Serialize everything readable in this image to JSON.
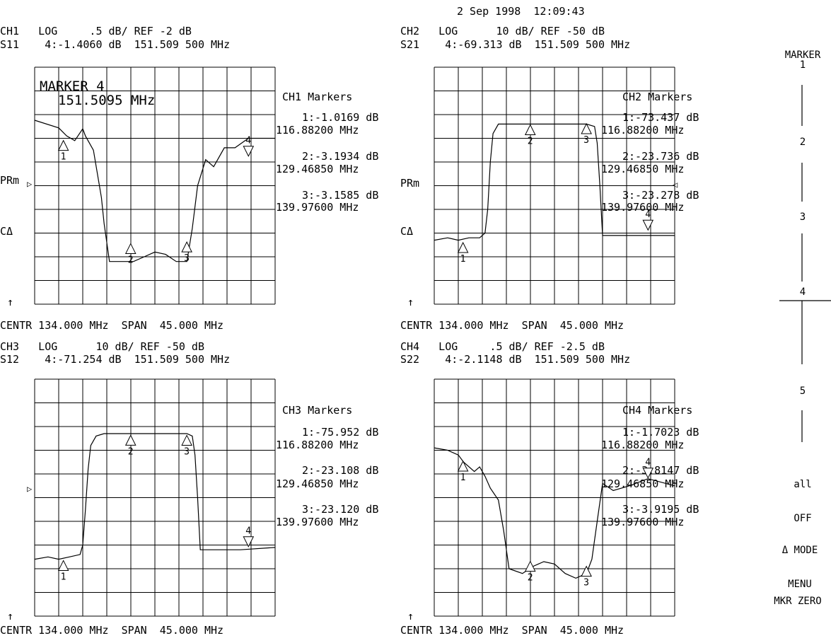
{
  "timestamp": "2 Sep 1998  12:09:43",
  "softkeys": {
    "marker_title": "MARKER",
    "k1": "1",
    "k2": "2",
    "k3": "3",
    "k4": "4",
    "k5": "5",
    "all": "all",
    "off": "OFF",
    "mode1": "Δ MODE",
    "mode2": "MENU",
    "zero": "MKR ZERO"
  },
  "channels": [
    {
      "hdr1": "CH1   LOG     .5 dB/ REF -2 dB",
      "hdr2": "S11    4:-1.4060 dB  151.509 500 MHz",
      "footer": "CENTR 134.000 MHz  SPAN  45.000 MHz",
      "box_title": "CH1 Markers",
      "m1a": "1:-1.0169 dB",
      "m1b": "116.88200 MHz",
      "m2a": "2:-3.1934 dB",
      "m2b": "129.46850 MHz",
      "m3a": "3:-3.1585 dB",
      "m3b": "139.97600 MHz",
      "prm": "PRm",
      "cdelta": "CΔ",
      "arrow": "↑",
      "marker_box_title": "MARKER 4",
      "marker_box_value": "151.5095 MHz",
      "ref_arrow": "▷"
    },
    {
      "hdr1": "CH2   LOG      10 dB/ REF -50 dB",
      "hdr2": "S21    4:-69.313 dB  151.509 500 MHz",
      "footer": "CENTR 134.000 MHz  SPAN  45.000 MHz",
      "box_title": "CH2 Markers",
      "m1a": "1:-73.437 dB",
      "m1b": "116.88200 MHz",
      "m2a": "2:-23.736 dB",
      "m2b": "129.46850 MHz",
      "m3a": "3:-23.278 dB",
      "m3b": "139.97600 MHz",
      "prm": "PRm",
      "cdelta": "CΔ",
      "arrow": "↑",
      "ref_arrow": "◁"
    },
    {
      "hdr1": "CH3   LOG      10 dB/ REF -50 dB",
      "hdr2": "S12    4:-71.254 dB  151.509 500 MHz",
      "footer": "CENTR 134.000 MHz  SPAN  45.000 MHz",
      "box_title": "CH3 Markers",
      "m1a": "1:-75.952 dB",
      "m1b": "116.88200 MHz",
      "m2a": "2:-23.108 dB",
      "m2b": "129.46850 MHz",
      "m3a": "3:-23.120 dB",
      "m3b": "139.97600 MHz",
      "arrow": "↑",
      "ref_arrow": "▷"
    },
    {
      "hdr1": "CH4   LOG     .5 dB/ REF -2.5 dB",
      "hdr2": "S22    4:-2.1148 dB  151.509 500 MHz",
      "footer": "CENTR 134.000 MHz  SPAN  45.000 MHz",
      "box_title": "CH4 Markers",
      "m1a": "1:-1.7023 dB",
      "m1b": "116.88200 MHz",
      "m2a": "2:-3.8147 dB",
      "m2b": "129.46850 MHz",
      "m3a": "3:-3.9195 dB",
      "m3b": "139.97600 MHz",
      "arrow": "↑",
      "ref_arrow": "◁"
    }
  ],
  "chart_data": [
    {
      "type": "line",
      "title": "CH1 S11 LOG .5 dB/ REF -2 dB",
      "x_range_mhz": [
        111.5,
        156.5
      ],
      "scale_db_per_div": 0.5,
      "divisions": 10,
      "ylim": [
        -4.5,
        0.5
      ],
      "series": [
        {
          "x": [
            111.5,
            116.0,
            117.5,
            119.0,
            120.5,
            121.0,
            122.5,
            124.0,
            124.5,
            125.5,
            128.0,
            130.0,
            132.0,
            134.0,
            136.0,
            138.0,
            140.0,
            141.0,
            142.0,
            143.5,
            145.0,
            147.0,
            149.0,
            151.5,
            156.5
          ],
          "y": [
            -0.62,
            -0.78,
            -0.95,
            -1.05,
            -0.8,
            -0.95,
            -1.25,
            -2.25,
            -2.8,
            -3.6,
            -3.6,
            -3.6,
            -3.5,
            -3.4,
            -3.45,
            -3.6,
            -3.6,
            -2.9,
            -2.0,
            -1.45,
            -1.6,
            -1.2,
            -1.2,
            -1.0,
            -1.0
          ]
        }
      ],
      "markers": [
        {
          "n": "1",
          "x": 116.882,
          "y": -1.0169
        },
        {
          "n": "2",
          "x": 129.4685,
          "y": -3.1934
        },
        {
          "n": "3",
          "x": 139.976,
          "y": -3.1585
        },
        {
          "n": "4",
          "x": 151.5095,
          "y": -1.406
        }
      ]
    },
    {
      "type": "line",
      "title": "CH2 S21 LOG 10 dB/ REF -50 dB",
      "x_range_mhz": [
        111.5,
        156.5
      ],
      "scale_db_per_div": 10,
      "divisions": 10,
      "ylim": [
        -100,
        0
      ],
      "series": [
        {
          "x": [
            111.5,
            114.0,
            116.0,
            118.0,
            120.0,
            121.0,
            121.5,
            122.0,
            122.5,
            123.5,
            125.0,
            127.0,
            130.0,
            133.0,
            136.0,
            140.0,
            141.5,
            142.0,
            142.5,
            143.0,
            144.0,
            146.0,
            150.0,
            156.5
          ],
          "y": [
            -73,
            -72,
            -73,
            -72,
            -72,
            -70,
            -60,
            -40,
            -28,
            -24,
            -24,
            -24,
            -24,
            -24,
            -24,
            -24,
            -25,
            -32,
            -50,
            -71,
            -71,
            -71,
            -71,
            -71
          ]
        }
      ],
      "markers": [
        {
          "n": "1",
          "x": 116.882,
          "y": -73.437
        },
        {
          "n": "2",
          "x": 129.4685,
          "y": -23.736
        },
        {
          "n": "3",
          "x": 139.976,
          "y": -23.278
        },
        {
          "n": "4",
          "x": 151.5095,
          "y": -69.313
        }
      ]
    },
    {
      "type": "line",
      "title": "CH3 S12 LOG 10 dB/ REF -50 dB",
      "x_range_mhz": [
        111.5,
        156.5
      ],
      "scale_db_per_div": 10,
      "divisions": 10,
      "ylim": [
        -100,
        0
      ],
      "series": [
        {
          "x": [
            111.5,
            114.0,
            116.0,
            118.0,
            120.0,
            120.5,
            121.0,
            121.5,
            122.0,
            123.0,
            124.5,
            127.0,
            130.0,
            133.0,
            136.0,
            140.0,
            141.0,
            141.5,
            142.0,
            142.5,
            143.5,
            146.0,
            150.0,
            156.5
          ],
          "y": [
            -76,
            -75,
            -76,
            -75,
            -74,
            -70,
            -55,
            -38,
            -28,
            -24,
            -23,
            -23,
            -23,
            -23,
            -23,
            -23,
            -24,
            -32,
            -50,
            -72,
            -72,
            -72,
            -72,
            -71
          ]
        }
      ],
      "markers": [
        {
          "n": "1",
          "x": 116.882,
          "y": -75.952
        },
        {
          "n": "2",
          "x": 129.4685,
          "y": -23.108
        },
        {
          "n": "3",
          "x": 139.976,
          "y": -23.12
        },
        {
          "n": "4",
          "x": 151.5095,
          "y": -71.254
        }
      ]
    },
    {
      "type": "line",
      "title": "CH4 S22 LOG .5 dB/ REF -2.5 dB",
      "x_range_mhz": [
        111.5,
        156.5
      ],
      "scale_db_per_div": 0.5,
      "divisions": 10,
      "ylim": [
        -5,
        0
      ],
      "series": [
        {
          "x": [
            111.5,
            114.0,
            116.0,
            117.0,
            119.0,
            120.0,
            121.0,
            122.0,
            123.5,
            124.5,
            125.5,
            128.0,
            130.0,
            132.0,
            134.0,
            136.0,
            138.0,
            140.0,
            141.0,
            142.0,
            143.0,
            145.0,
            148.0,
            151.5,
            156.5
          ],
          "y": [
            -1.45,
            -1.5,
            -1.6,
            -1.75,
            -1.95,
            -1.85,
            -2.05,
            -2.3,
            -2.55,
            -3.2,
            -4.0,
            -4.1,
            -3.95,
            -3.85,
            -3.9,
            -4.1,
            -4.2,
            -4.1,
            -3.8,
            -3.0,
            -2.2,
            -2.35,
            -2.25,
            -2.1,
            -2.25
          ]
        }
      ],
      "markers": [
        {
          "n": "1",
          "x": 116.882,
          "y": -1.7023
        },
        {
          "n": "2",
          "x": 129.4685,
          "y": -3.8147
        },
        {
          "n": "3",
          "x": 139.976,
          "y": -3.9195
        },
        {
          "n": "4",
          "x": 151.5095,
          "y": -2.1148
        }
      ]
    }
  ]
}
